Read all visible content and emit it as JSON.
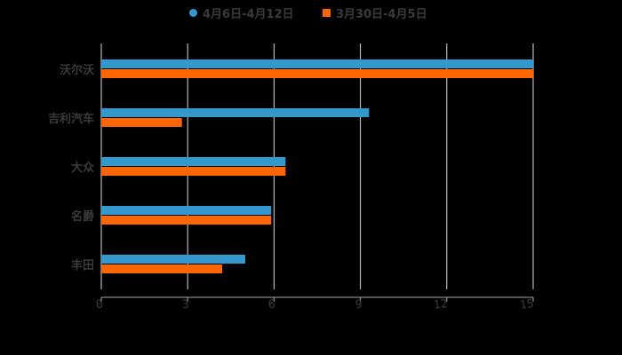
{
  "chart_data": {
    "type": "bar",
    "orientation": "horizontal",
    "title": "",
    "xlabel": "",
    "ylabel": "",
    "categories": [
      "沃尔沃",
      "吉利汽车",
      "大众",
      "名爵",
      "丰田"
    ],
    "series": [
      {
        "name": "4月6日-4月12日",
        "color": "#3399cc",
        "marker": "circle",
        "values": [
          15,
          9.3,
          6.4,
          5.9,
          5.0
        ]
      },
      {
        "name": "3月30日-4月5日",
        "color": "#ff6600",
        "marker": "square",
        "values": [
          15,
          2.8,
          6.4,
          5.9,
          4.2
        ]
      }
    ],
    "xlim": [
      0,
      15
    ],
    "xticks": [
      "0",
      "3",
      "6",
      "9",
      "12",
      "15"
    ],
    "grid": true,
    "legend_position": "top"
  },
  "colors": {
    "background": "#000000",
    "gridline": "#d9d9d9",
    "axis": "#a6a6a6",
    "text": "#3a3a3a"
  }
}
